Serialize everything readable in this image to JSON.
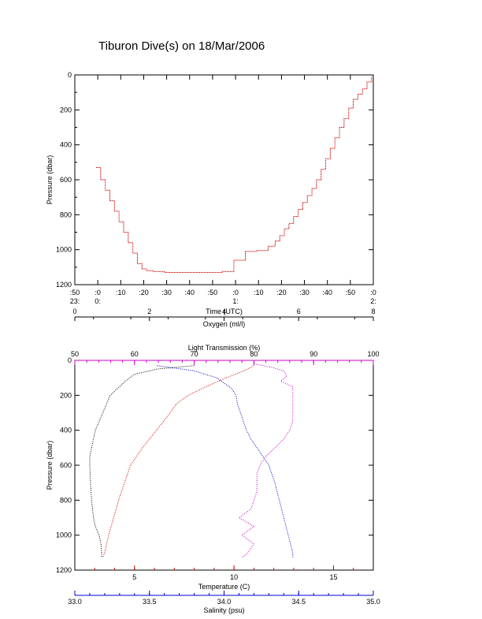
{
  "title": "Tiburon Dive(s) on 18/Mar/2006",
  "colors": {
    "axis": "#000000",
    "dive_track": "#cc0000",
    "oxygen": "#000000",
    "light_transmission": "#cc00cc",
    "temperature": "#cc0000",
    "salinity": "#0000cc"
  },
  "chart_data": [
    {
      "type": "line",
      "xlabel": "Time (UTC)",
      "ylabel": "Pressure (dbar)",
      "y_reversed": true,
      "ylim": [
        0,
        1200
      ],
      "y_ticks": [
        "0",
        "200",
        "400",
        "600",
        "800",
        "1000",
        "1200"
      ],
      "x_ticks": [
        {
          "top": ":50",
          "bottom": "23:"
        },
        {
          "top": ":0",
          "bottom": "0:"
        },
        {
          "top": ":10",
          "bottom": ""
        },
        {
          "top": ":20",
          "bottom": ""
        },
        {
          "top": ":30",
          "bottom": ""
        },
        {
          "top": ":40",
          "bottom": ""
        },
        {
          "top": ":50",
          "bottom": ""
        },
        {
          "top": ":0",
          "bottom": "1:"
        },
        {
          "top": ":10",
          "bottom": ""
        },
        {
          "top": ":20",
          "bottom": ""
        },
        {
          "top": ":30",
          "bottom": ""
        },
        {
          "top": ":40",
          "bottom": ""
        },
        {
          "top": ":50",
          "bottom": ""
        },
        {
          "top": ":0",
          "bottom": "2:"
        }
      ],
      "series": [
        {
          "minutes_after_2350": [
            0,
            2,
            4,
            6,
            8,
            10,
            12,
            14,
            16,
            18,
            20,
            22,
            25,
            30,
            40,
            50,
            55,
            60,
            65,
            70,
            75,
            78,
            80,
            82,
            84,
            86,
            88,
            90,
            92,
            94,
            96,
            98,
            100,
            102,
            104,
            106,
            108,
            110,
            112,
            114,
            116,
            118,
            120
          ],
          "x_time_label_note": "",
          "pressure": [
            530,
            600,
            660,
            720,
            780,
            840,
            900,
            960,
            1020,
            1080,
            1110,
            1120,
            1125,
            1130,
            1130,
            1130,
            1125,
            1060,
            1010,
            1005,
            980,
            950,
            920,
            880,
            850,
            810,
            770,
            730,
            690,
            650,
            600,
            540,
            480,
            420,
            360,
            300,
            250,
            190,
            140,
            110,
            80,
            40,
            10
          ]
        }
      ]
    },
    {
      "type": "scatter",
      "ylabel": "Pressure (dbar)",
      "y_reversed": true,
      "ylim": [
        0,
        1200
      ],
      "y_ticks": [
        "0",
        "200",
        "400",
        "600",
        "800",
        "1000",
        "1200"
      ],
      "axes": {
        "oxygen": {
          "label": "Oxygen (ml/l)",
          "range": [
            0,
            8
          ],
          "ticks": [
            "0",
            "2",
            "4",
            "6",
            "8"
          ]
        },
        "light_transmission": {
          "label": "Light Transmission (%)",
          "range": [
            50,
            100
          ],
          "ticks": [
            "50",
            "60",
            "70",
            "80",
            "90",
            "100"
          ]
        },
        "temperature": {
          "label": "Temperature (C)",
          "range": [
            2,
            17
          ],
          "ticks": [
            "5",
            "10",
            "15"
          ]
        },
        "salinity": {
          "label": "Salinity (psu)",
          "range": [
            33.0,
            35.0
          ],
          "ticks": [
            "33.0",
            "33.5",
            "34.0",
            "34.5",
            "35.0"
          ]
        }
      },
      "series": [
        {
          "key": "oxygen",
          "pressure": [
            30,
            50,
            80,
            120,
            160,
            200,
            250,
            300,
            350,
            400,
            450,
            500,
            550,
            600,
            700,
            800,
            900,
            950,
            1000,
            1050,
            1100,
            1130
          ],
          "values": [
            3.2,
            2.2,
            1.6,
            1.35,
            1.15,
            0.95,
            0.85,
            0.75,
            0.65,
            0.55,
            0.5,
            0.45,
            0.4,
            0.4,
            0.42,
            0.45,
            0.5,
            0.55,
            0.65,
            0.7,
            0.72,
            0.72
          ]
        },
        {
          "key": "light_transmission",
          "pressure": [
            20,
            40,
            60,
            90,
            120,
            150,
            200,
            250,
            300,
            350,
            400,
            450,
            500,
            550,
            600,
            650,
            700,
            750,
            800,
            850,
            900,
            950,
            1000,
            1050,
            1100,
            1130
          ],
          "values": [
            80,
            83,
            85,
            85.5,
            84.5,
            86.5,
            86.5,
            86.5,
            86.5,
            86.5,
            86,
            85,
            83.5,
            82,
            81,
            80.5,
            80.5,
            80.5,
            80,
            79.5,
            77.5,
            80,
            78,
            80,
            79,
            78
          ]
        },
        {
          "key": "temperature",
          "pressure": [
            30,
            60,
            100,
            150,
            200,
            250,
            300,
            400,
            500,
            600,
            700,
            800,
            900,
            1000,
            1100,
            1130
          ],
          "values": [
            11,
            10.5,
            9.6,
            8.6,
            7.7,
            7.1,
            6.8,
            6.1,
            5.4,
            4.8,
            4.5,
            4.2,
            3.95,
            3.7,
            3.5,
            3.4
          ]
        },
        {
          "key": "salinity",
          "pressure": [
            30,
            60,
            100,
            130,
            160,
            200,
            250,
            300,
            350,
            400,
            450,
            500,
            550,
            600,
            650,
            700,
            800,
            900,
            1000,
            1100,
            1130
          ],
          "values": [
            33.55,
            33.8,
            33.95,
            34.0,
            34.05,
            34.08,
            34.09,
            34.11,
            34.13,
            34.15,
            34.18,
            34.22,
            34.26,
            34.3,
            34.32,
            34.34,
            34.37,
            34.4,
            34.43,
            34.46,
            34.46
          ]
        }
      ]
    }
  ]
}
